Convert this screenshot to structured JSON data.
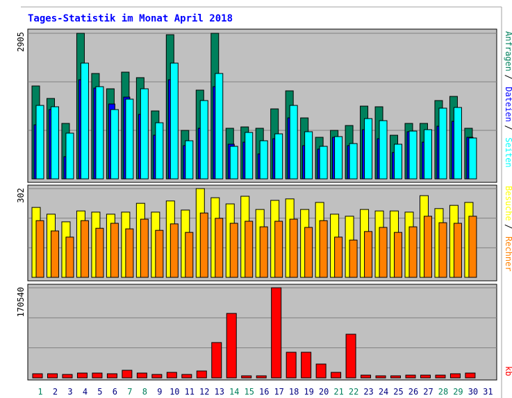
{
  "chart_data": [
    {
      "type": "bar",
      "title": "Tages-Statistik im Monat April 2018",
      "ylim": [
        0,
        2905
      ],
      "yticks": [
        2905
      ],
      "legend_separator": "/",
      "series": [
        {
          "name": "Anfragen",
          "color": "#00805c",
          "values": [
            1854,
            1605,
            1107,
            2905,
            2103,
            1798,
            2130,
            2020,
            1356,
            2877,
            968,
            1771,
            2905,
            1010,
            1037,
            1010,
            1397,
            1757,
            1217,
            830,
            968,
            1065,
            1452,
            1439,
            871,
            1107,
            1107,
            1563,
            1646,
            1010,
            null
          ]
        },
        {
          "name": "Dateien",
          "color": "#0000ff",
          "values": [
            1079,
            1383,
            443,
            1978,
            1812,
            1494,
            1632,
            1287,
            872,
            1978,
            664,
            1010,
            1840,
            692,
            733,
            498,
            802,
            1217,
            664,
            595,
            830,
            664,
            982,
            802,
            526,
            941,
            733,
            1051,
            1148,
            830,
            null
          ]
        },
        {
          "name": "Seiten",
          "color": "#00ffff",
          "values": [
            1466,
            1439,
            913,
            2310,
            1840,
            1383,
            1591,
            1798,
            1120,
            2310,
            761,
            1563,
            2103,
            650,
            927,
            761,
            899,
            1466,
            941,
            650,
            844,
            705,
            1203,
            1162,
            692,
            954,
            982,
            1411,
            1425,
            816,
            null
          ]
        }
      ]
    },
    {
      "type": "bar",
      "ylim": [
        0,
        302
      ],
      "yticks": [
        302
      ],
      "series": [
        {
          "name": "Besuche",
          "color": "#ffff00",
          "values": [
            238,
            215,
            189,
            226,
            222,
            215,
            222,
            252,
            222,
            260,
            229,
            302,
            271,
            250,
            276,
            231,
            262,
            267,
            231,
            255,
            215,
            208,
            231,
            226,
            226,
            222,
            278,
            234,
            245,
            255,
            null
          ]
        },
        {
          "name": "Rechner",
          "color": "#ff8000",
          "values": [
            193,
            158,
            137,
            193,
            167,
            184,
            165,
            198,
            160,
            182,
            153,
            219,
            201,
            184,
            191,
            172,
            191,
            198,
            170,
            193,
            137,
            127,
            156,
            170,
            153,
            172,
            208,
            186,
            184,
            208,
            null
          ]
        }
      ]
    },
    {
      "type": "bar",
      "ylim": [
        0,
        170540
      ],
      "yticks": [
        170540
      ],
      "categories": [
        "1",
        "2",
        "3",
        "4",
        "5",
        "6",
        "7",
        "8",
        "9",
        "10",
        "11",
        "12",
        "13",
        "14",
        "15",
        "16",
        "17",
        "18",
        "19",
        "20",
        "21",
        "22",
        "23",
        "24",
        "25",
        "26",
        "27",
        "28",
        "29",
        "30",
        "31"
      ],
      "category_colors": [
        "#00805c",
        "#000080",
        "#000080",
        "#000080",
        "#000080",
        "#000080",
        "#00805c",
        "#00805c",
        "#000080",
        "#000080",
        "#000080",
        "#000080",
        "#000080",
        "#00805c",
        "#00805c",
        "#000080",
        "#000080",
        "#000080",
        "#000080",
        "#000080",
        "#00805c",
        "#00805c",
        "#000080",
        "#000080",
        "#000080",
        "#000080",
        "#000080",
        "#00805c",
        "#00805c",
        "#000080",
        "#000080"
      ],
      "series": [
        {
          "name": "kb",
          "color": "#ff0000",
          "values": [
            7871,
            7871,
            6559,
            9183,
            9183,
            7871,
            14430,
            9183,
            6559,
            10494,
            6559,
            13118,
            66902,
            121997,
            3935,
            3935,
            170540,
            48537,
            48537,
            26236,
            10494,
            82643,
            5247,
            3935,
            3935,
            5247,
            5247,
            5247,
            7871,
            9183,
            null
          ]
        }
      ]
    }
  ]
}
